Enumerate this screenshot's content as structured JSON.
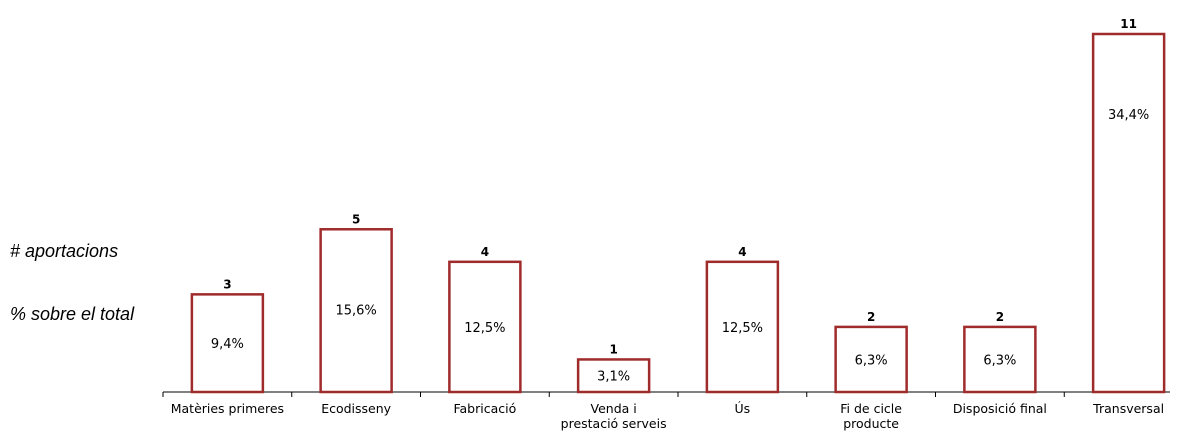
{
  "legend": {
    "count_label": "# aportacions",
    "percent_label": "% sobre el total"
  },
  "colors": {
    "bar_stroke": "#a02b2b",
    "bar_fill": "#ffffff",
    "axis": "#000000"
  },
  "chart_data": {
    "type": "bar",
    "categories": [
      [
        "Matèries primeres"
      ],
      [
        "Ecodisseny"
      ],
      [
        "Fabricació"
      ],
      [
        "Venda i",
        "prestació serveis"
      ],
      [
        "Ús"
      ],
      [
        "Fi de cicle",
        "producte"
      ],
      [
        "Disposició final"
      ],
      [
        "Transversal"
      ]
    ],
    "values": [
      3,
      5,
      4,
      1,
      4,
      2,
      2,
      11
    ],
    "percent_labels": [
      "9,4%",
      "15,6%",
      "12,5%",
      "3,1%",
      "12,5%",
      "6,3%",
      "6,3%",
      "34,4%"
    ],
    "title": "",
    "xlabel": "",
    "ylabel": "",
    "ylim": [
      0,
      11
    ]
  }
}
